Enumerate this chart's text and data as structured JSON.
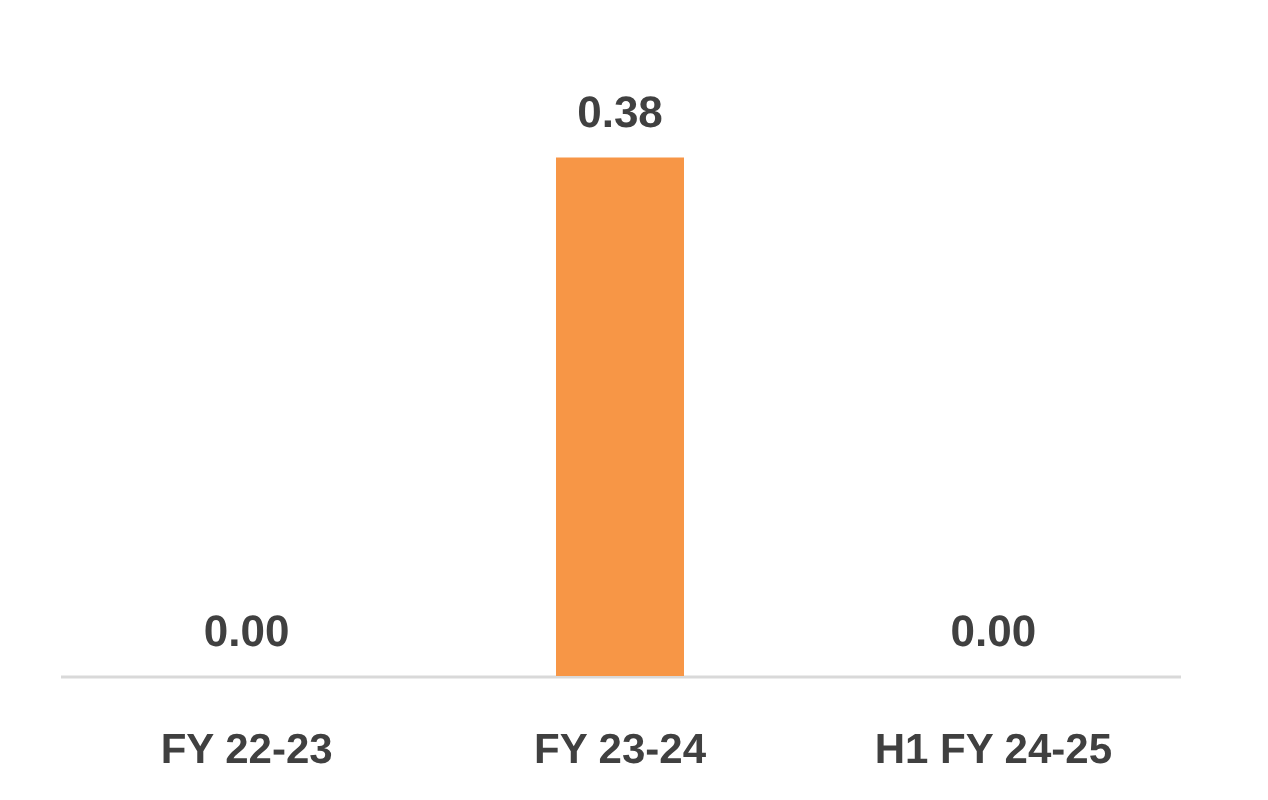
{
  "chart_data": {
    "type": "bar",
    "categories": [
      "FY 22-23",
      "FY 23-24",
      "H1 FY 24-25"
    ],
    "values": [
      0.0,
      0.38,
      0.0
    ],
    "color": "#f79646",
    "value_labels": [
      "0.00",
      "0.38",
      "0.00"
    ],
    "grid": false
  }
}
